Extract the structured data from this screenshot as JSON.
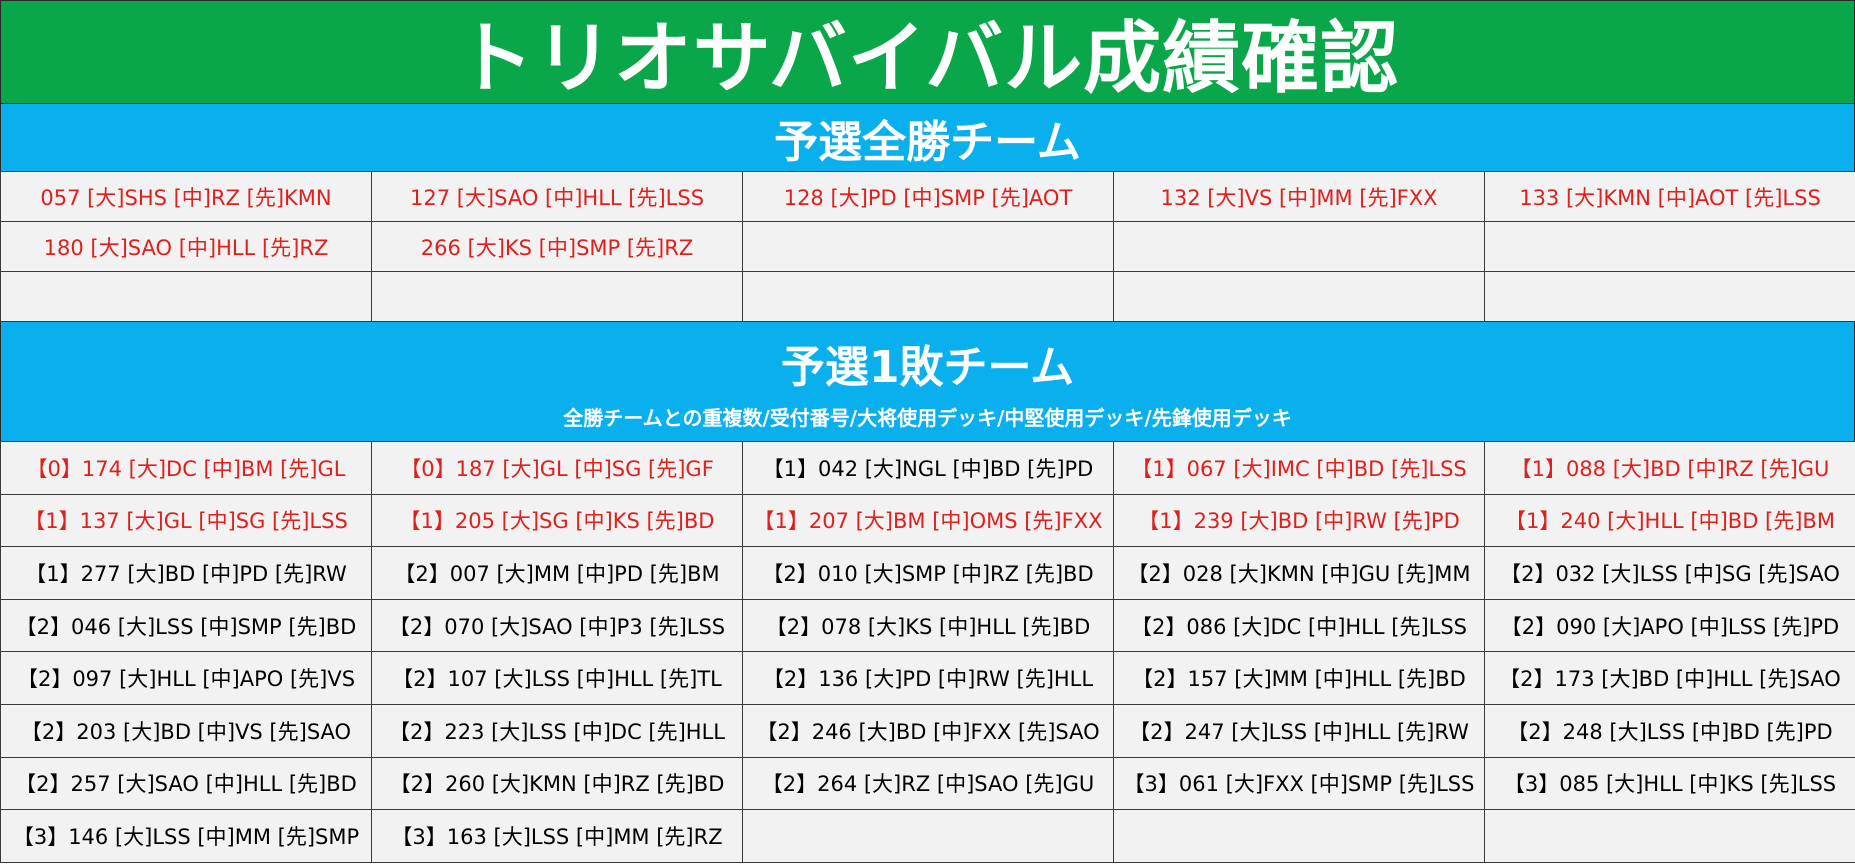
{
  "title": "トリオサバイバル成績確認",
  "colors": {
    "title_bg": "#0aa64a",
    "band_bg": "#0ab0ee",
    "cell_bg": "#f2f2f2",
    "red_text": "#e0201d",
    "black_text": "#000000"
  },
  "section1": {
    "heading": "予選全勝チーム",
    "rows": [
      [
        {
          "text": "057 [大]SHS [中]RZ [先]KMN",
          "red": true
        },
        {
          "text": "127 [大]SAO [中]HLL [先]LSS",
          "red": true
        },
        {
          "text": "128 [大]PD [中]SMP [先]AOT",
          "red": true
        },
        {
          "text": "132 [大]VS [中]MM [先]FXX",
          "red": true
        },
        {
          "text": "133 [大]KMN [中]AOT [先]LSS",
          "red": true
        }
      ],
      [
        {
          "text": "180 [大]SAO [中]HLL [先]RZ",
          "red": true
        },
        {
          "text": "266 [大]KS [中]SMP [先]RZ",
          "red": true
        },
        {
          "text": "",
          "red": false
        },
        {
          "text": "",
          "red": false
        },
        {
          "text": "",
          "red": false
        }
      ],
      [
        {
          "text": "",
          "red": false
        },
        {
          "text": "",
          "red": false
        },
        {
          "text": "",
          "red": false
        },
        {
          "text": "",
          "red": false
        },
        {
          "text": "",
          "red": false
        }
      ]
    ]
  },
  "section2": {
    "heading": "予選1敗チーム",
    "subheading": "全勝チームとの重複数/受付番号/大将使用デッキ/中堅使用デッキ/先鋒使用デッキ",
    "rows": [
      [
        {
          "text": "【0】174 [大]DC [中]BM [先]GL",
          "red": true
        },
        {
          "text": "【0】187 [大]GL [中]SG [先]GF",
          "red": true
        },
        {
          "text": "【1】042 [大]NGL [中]BD [先]PD",
          "red": false
        },
        {
          "text": "【1】067 [大]IMC [中]BD [先]LSS",
          "red": true
        },
        {
          "text": "【1】088 [大]BD [中]RZ [先]GU",
          "red": true
        }
      ],
      [
        {
          "text": "【1】137 [大]GL [中]SG [先]LSS",
          "red": true
        },
        {
          "text": "【1】205 [大]SG [中]KS [先]BD",
          "red": true
        },
        {
          "text": "【1】207 [大]BM [中]OMS [先]FXX",
          "red": true
        },
        {
          "text": "【1】239 [大]BD [中]RW [先]PD",
          "red": true
        },
        {
          "text": "【1】240 [大]HLL [中]BD [先]BM",
          "red": true
        }
      ],
      [
        {
          "text": "【1】277 [大]BD [中]PD [先]RW",
          "red": false
        },
        {
          "text": "【2】007 [大]MM [中]PD [先]BM",
          "red": false
        },
        {
          "text": "【2】010 [大]SMP [中]RZ [先]BD",
          "red": false
        },
        {
          "text": "【2】028 [大]KMN [中]GU [先]MM",
          "red": false
        },
        {
          "text": "【2】032 [大]LSS [中]SG [先]SAO",
          "red": false
        }
      ],
      [
        {
          "text": "【2】046 [大]LSS [中]SMP [先]BD",
          "red": false
        },
        {
          "text": "【2】070 [大]SAO [中]P3 [先]LSS",
          "red": false
        },
        {
          "text": "【2】078 [大]KS [中]HLL [先]BD",
          "red": false
        },
        {
          "text": "【2】086 [大]DC [中]HLL [先]LSS",
          "red": false
        },
        {
          "text": "【2】090 [大]APO [中]LSS [先]PD",
          "red": false
        }
      ],
      [
        {
          "text": "【2】097 [大]HLL [中]APO [先]VS",
          "red": false
        },
        {
          "text": "【2】107 [大]LSS [中]HLL [先]TL",
          "red": false
        },
        {
          "text": "【2】136 [大]PD [中]RW [先]HLL",
          "red": false
        },
        {
          "text": "【2】157 [大]MM [中]HLL [先]BD",
          "red": false
        },
        {
          "text": "【2】173 [大]BD [中]HLL [先]SAO",
          "red": false
        }
      ],
      [
        {
          "text": "【2】203 [大]BD [中]VS [先]SAO",
          "red": false
        },
        {
          "text": "【2】223 [大]LSS [中]DC [先]HLL",
          "red": false
        },
        {
          "text": "【2】246 [大]BD [中]FXX [先]SAO",
          "red": false
        },
        {
          "text": "【2】247 [大]LSS [中]HLL [先]RW",
          "red": false
        },
        {
          "text": "【2】248 [大]LSS [中]BD [先]PD",
          "red": false
        }
      ],
      [
        {
          "text": "【2】257 [大]SAO [中]HLL [先]BD",
          "red": false
        },
        {
          "text": "【2】260 [大]KMN [中]RZ [先]BD",
          "red": false
        },
        {
          "text": "【2】264 [大]RZ [中]SAO [先]GU",
          "red": false
        },
        {
          "text": "【3】061 [大]FXX [中]SMP [先]LSS",
          "red": false
        },
        {
          "text": "【3】085 [大]HLL [中]KS [先]LSS",
          "red": false
        }
      ],
      [
        {
          "text": "【3】146 [大]LSS [中]MM [先]SMP",
          "red": false
        },
        {
          "text": "【3】163 [大]LSS [中]MM [先]RZ",
          "red": false
        },
        {
          "text": "",
          "red": false
        },
        {
          "text": "",
          "red": false
        },
        {
          "text": "",
          "red": false
        }
      ]
    ]
  }
}
